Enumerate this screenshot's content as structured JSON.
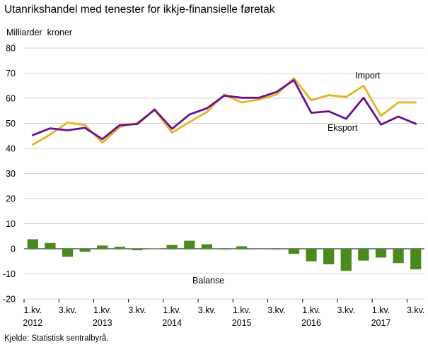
{
  "title": "Utanrikshandel med tenester for ikkje-finansielle føretak",
  "ylabel": "Milliarder  kroner",
  "source": "Kjelde: Statistisk sentralbyrå.",
  "chart_data": {
    "type": "line",
    "y_ticks": [
      "80",
      "70",
      "60",
      "50",
      "40",
      "30",
      "20",
      "10",
      "0",
      "-10",
      "-20"
    ],
    "ylim": [
      -20,
      80
    ],
    "grid": true,
    "x_tick_labels": [
      {
        "q": "1.kv.",
        "year": "2012"
      },
      {
        "q": "3.kv.",
        "year": ""
      },
      {
        "q": "1.kv.",
        "year": "2013"
      },
      {
        "q": "3.kv.",
        "year": ""
      },
      {
        "q": "1.kv.",
        "year": "2014"
      },
      {
        "q": "3.kv.",
        "year": ""
      },
      {
        "q": "1.kv.",
        "year": "2015"
      },
      {
        "q": "3.kv.",
        "year": ""
      },
      {
        "q": "1.kv.",
        "year": "2016"
      },
      {
        "q": "3.kv.",
        "year": ""
      },
      {
        "q": "1.kv.",
        "year": "2017"
      },
      {
        "q": "3.kv.",
        "year": ""
      }
    ],
    "x": [
      "2012K1",
      "2012K2",
      "2012K3",
      "2012K4",
      "2013K1",
      "2013K2",
      "2013K3",
      "2013K4",
      "2014K1",
      "2014K2",
      "2014K3",
      "2014K4",
      "2015K1",
      "2015K2",
      "2015K3",
      "2015K4",
      "2016K1",
      "2016K2",
      "2016K3",
      "2016K4",
      "2017K1",
      "2017K2",
      "2017K3"
    ],
    "series": [
      {
        "name": "Import",
        "type": "line",
        "color": "#e8b127",
        "values": [
          41.5,
          45.5,
          50.3,
          49.3,
          42.3,
          48.5,
          50.2,
          55.3,
          46.3,
          50.5,
          54.5,
          61.5,
          58.3,
          59.5,
          61.5,
          68.0,
          59.2,
          61.2,
          60.5,
          65.0,
          53.0,
          58.3,
          58.3
        ]
      },
      {
        "name": "Eksport",
        "type": "line",
        "color": "#6a0f8c",
        "values": [
          45.3,
          48.0,
          47.2,
          48.2,
          43.7,
          49.3,
          49.7,
          55.5,
          47.8,
          53.5,
          56.0,
          61.0,
          60.2,
          60.2,
          62.5,
          67.2,
          54.2,
          54.8,
          51.8,
          60.2,
          49.5,
          52.7,
          49.8
        ]
      },
      {
        "name": "Balanse",
        "type": "bar",
        "color": "#4a8a1c",
        "values": [
          3.8,
          2.3,
          -3.2,
          -1.2,
          1.3,
          0.8,
          -0.6,
          0.2,
          1.5,
          3.2,
          1.8,
          -0.3,
          1.0,
          -0.2,
          -0.3,
          -2.0,
          -5.0,
          -6.2,
          -8.8,
          -4.7,
          -3.5,
          -5.7,
          -8.2
        ]
      }
    ]
  }
}
